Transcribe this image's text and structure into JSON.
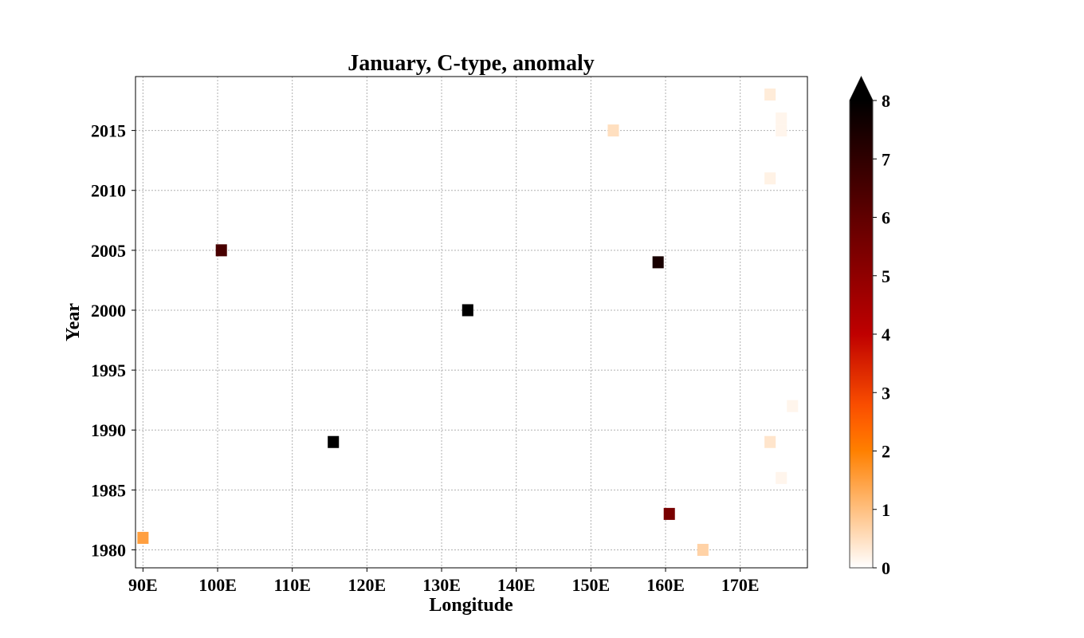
{
  "chart_data": {
    "type": "heatmap",
    "title": "January, C-type, anomaly",
    "xlabel": "Longitude",
    "ylabel": "Year",
    "xlim": [
      89,
      179
    ],
    "ylim": [
      1978.5,
      2019.5
    ],
    "x_ticks": [
      90,
      100,
      110,
      120,
      130,
      140,
      150,
      160,
      170
    ],
    "x_tick_labels": [
      "90E",
      "100E",
      "110E",
      "120E",
      "130E",
      "140E",
      "150E",
      "160E",
      "170E"
    ],
    "y_ticks": [
      1980,
      1985,
      1990,
      1995,
      2000,
      2005,
      2010,
      2015
    ],
    "y_tick_labels": [
      "1980",
      "1985",
      "1990",
      "1995",
      "2000",
      "2005",
      "2010",
      "2015"
    ],
    "grid": true,
    "cell_width_deg": 1.5,
    "colormap": "gist_heat_r",
    "colorbar": {
      "min": 0,
      "max": 8,
      "extend": "max",
      "ticks": [
        0,
        1,
        2,
        3,
        4,
        5,
        6,
        7,
        8
      ],
      "tick_labels": [
        "0",
        "1",
        "2",
        "3",
        "4",
        "5",
        "6",
        "7",
        "8"
      ]
    },
    "points": [
      {
        "x": 90.0,
        "y": 1981,
        "value": 1.5
      },
      {
        "x": 100.5,
        "y": 2005,
        "value": 6.5
      },
      {
        "x": 115.5,
        "y": 1989,
        "value": 8.0
      },
      {
        "x": 133.5,
        "y": 2000,
        "value": 8.0
      },
      {
        "x": 153.0,
        "y": 2015,
        "value": 0.5
      },
      {
        "x": 159.0,
        "y": 2004,
        "value": 7.5
      },
      {
        "x": 160.5,
        "y": 1983,
        "value": 5.5
      },
      {
        "x": 165.0,
        "y": 1980,
        "value": 0.7
      },
      {
        "x": 174.0,
        "y": 2018,
        "value": 0.3
      },
      {
        "x": 174.0,
        "y": 2011,
        "value": 0.2
      },
      {
        "x": 174.0,
        "y": 1989,
        "value": 0.4
      },
      {
        "x": 175.5,
        "y": 2016,
        "value": 0.15
      },
      {
        "x": 175.5,
        "y": 2015,
        "value": 0.15
      },
      {
        "x": 175.5,
        "y": 1986,
        "value": 0.15
      },
      {
        "x": 177.0,
        "y": 1992,
        "value": 0.15
      }
    ]
  }
}
